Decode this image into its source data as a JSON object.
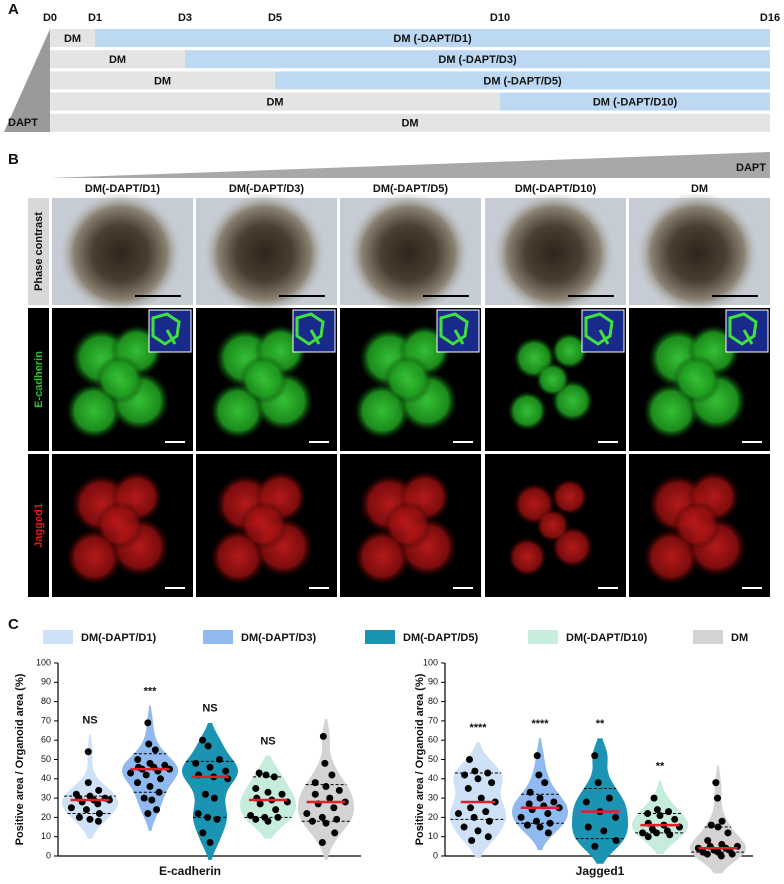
{
  "panel_a": {
    "label": "A",
    "days": [
      "D0",
      "D1",
      "D3",
      "D5",
      "D10",
      "D16"
    ],
    "rows": [
      {
        "dm": "DM",
        "dapt": "DM (-DAPT/D1)"
      },
      {
        "dm": "DM",
        "dapt": "DM (-DAPT/D3)"
      },
      {
        "dm": "DM",
        "dapt": "DM (-DAPT/D5)"
      },
      {
        "dm": "DM",
        "dapt": "DM (-DAPT/D10)"
      },
      {
        "dm": "DM"
      }
    ],
    "gradient_label": "DAPT"
  },
  "panel_b": {
    "label": "B",
    "gradient_label": "DAPT",
    "columns": [
      "DM(-DAPT/D1)",
      "DM(-DAPT/D3)",
      "DM(-DAPT/D5)",
      "DM(-DAPT/D10)",
      "DM"
    ],
    "rows": [
      "Phase contrast",
      "E-cadherin",
      "Jagged1"
    ]
  },
  "panel_c": {
    "label": "C",
    "legend": [
      {
        "name": "DM(-DAPT/D1)",
        "color": "#cfe1f6"
      },
      {
        "name": "DM(-DAPT/D3)",
        "color": "#8fb9ef"
      },
      {
        "name": "DM(-DAPT/D5)",
        "color": "#1b93b3"
      },
      {
        "name": "DM(-DAPT/D10)",
        "color": "#c6ecdc"
      },
      {
        "name": "DM",
        "color": "#d3d3d3"
      }
    ]
  },
  "chart_data": [
    {
      "type": "violin",
      "ylabel": "Positive area / Organoid area (%)",
      "xlabel": "E-cadherin",
      "ylim": [
        0,
        100
      ],
      "yticks": [
        0,
        10,
        20,
        30,
        40,
        50,
        60,
        70,
        80,
        90,
        100
      ],
      "groups": [
        {
          "values": [
            54,
            38,
            34,
            32,
            31,
            30,
            30,
            29,
            29,
            28,
            27,
            25,
            24,
            22,
            20,
            19,
            18
          ],
          "median": 29,
          "quartiles": [
            22,
            31
          ],
          "annotation": "NS"
        },
        {
          "values": [
            69,
            58,
            55,
            50,
            48,
            47,
            46,
            46,
            45,
            45,
            44,
            43,
            42,
            40,
            38,
            36,
            33,
            30,
            29,
            24,
            22
          ],
          "median": 45,
          "quartiles": [
            33,
            53
          ],
          "annotation": "***"
        },
        {
          "values": [
            60,
            57,
            50,
            48,
            46,
            44,
            42,
            41,
            40,
            32,
            30,
            22,
            20,
            19,
            12,
            7
          ],
          "median": 41,
          "quartiles": [
            20,
            49
          ],
          "annotation": "NS"
        },
        {
          "values": [
            43,
            42,
            41,
            35,
            33,
            32,
            30,
            29,
            28,
            27,
            24,
            21,
            20,
            20,
            19,
            18
          ],
          "median": 29,
          "quartiles": [
            20,
            41
          ],
          "annotation": "NS"
        },
        {
          "values": [
            62,
            48,
            42,
            38,
            36,
            34,
            32,
            30,
            28,
            27,
            25,
            22,
            20,
            19,
            18,
            17,
            12,
            7
          ],
          "median": 28,
          "quartiles": [
            18,
            37
          ]
        }
      ]
    },
    {
      "type": "violin",
      "ylabel": "Positive area / Organoid area (%)",
      "xlabel": "Jagged1",
      "ylim": [
        0,
        100
      ],
      "yticks": [
        0,
        10,
        20,
        30,
        40,
        50,
        60,
        70,
        80,
        90,
        100
      ],
      "groups": [
        {
          "values": [
            50,
            44,
            43,
            42,
            40,
            38,
            35,
            30,
            28,
            25,
            23,
            22,
            20,
            18,
            15,
            13,
            10,
            8
          ],
          "median": 28,
          "quartiles": [
            19,
            43
          ],
          "annotation": "****"
        },
        {
          "values": [
            52,
            42,
            38,
            33,
            30,
            28,
            27,
            26,
            25,
            24,
            22,
            20,
            18,
            17,
            16,
            15,
            12
          ],
          "median": 25,
          "quartiles": [
            17,
            32
          ],
          "annotation": "****"
        },
        {
          "values": [
            52,
            38,
            30,
            28,
            23,
            20,
            15,
            13,
            8,
            5
          ],
          "median": 23,
          "quartiles": [
            9,
            35
          ],
          "annotation": "**"
        },
        {
          "values": [
            30,
            24,
            23,
            22,
            21,
            19,
            17,
            16,
            15,
            14,
            13,
            12,
            12,
            11,
            10
          ],
          "median": 16,
          "quartiles": [
            12,
            22
          ],
          "annotation": "**"
        },
        {
          "values": [
            38,
            30,
            18,
            16,
            15,
            12,
            8,
            6,
            5,
            5,
            4,
            4,
            3,
            3,
            2,
            2,
            1,
            1,
            0
          ],
          "median": 4,
          "quartiles": [
            2,
            15
          ]
        }
      ]
    }
  ]
}
